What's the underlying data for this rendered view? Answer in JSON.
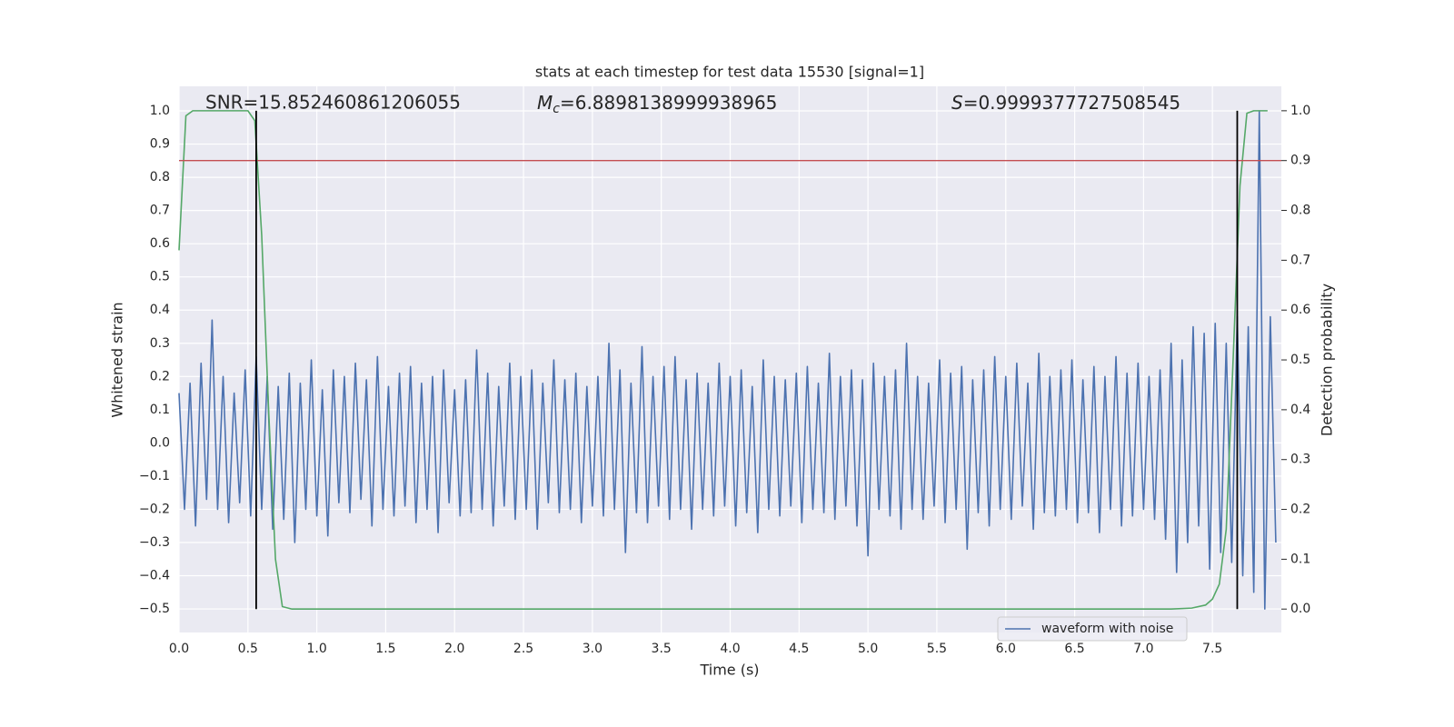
{
  "chart_data": {
    "type": "line",
    "title": "stats at each timestep for test data 15530 [signal=1]",
    "xlabel": "Time (s)",
    "ylabel": "Whitened strain",
    "y2label": "Detection probability",
    "annotations": [
      {
        "text": "SNR=15.852460861206055"
      },
      {
        "base": "M",
        "sub": "c",
        "text": "=6.8898138999938965"
      },
      {
        "base": "S",
        "text": "=0.9999377727508545"
      }
    ],
    "xlim": [
      0,
      8
    ],
    "ylim": [
      -0.571,
      1.074
    ],
    "y2lim": [
      -0.047,
      1.049
    ],
    "xticks": [
      {
        "value": 0,
        "label": "0.0"
      },
      0.5,
      {
        "value": 1,
        "label": "1.0"
      },
      1.5,
      {
        "value": 2,
        "label": "2.0"
      },
      2.5,
      {
        "value": 3,
        "label": "3.0"
      },
      3.5,
      {
        "value": 4,
        "label": "4.0"
      },
      4.5,
      {
        "value": 5,
        "label": "5.0"
      },
      5.5,
      {
        "value": 6,
        "label": "6.0"
      },
      6.5,
      {
        "value": 7,
        "label": "7.0"
      },
      7.5
    ],
    "yticks": [
      {
        "value": -0.5,
        "label": "−0.5"
      },
      {
        "value": -0.4,
        "label": "−0.4"
      },
      {
        "value": -0.3,
        "label": "−0.3"
      },
      {
        "value": -0.2,
        "label": "−0.2"
      },
      {
        "value": -0.1,
        "label": "−0.1"
      },
      {
        "value": 0,
        "label": "0.0"
      },
      0.1,
      0.2,
      0.3,
      0.4,
      0.5,
      0.6,
      0.7,
      0.8,
      0.9,
      {
        "value": 1,
        "label": "1.0"
      }
    ],
    "y2ticks": [
      {
        "value": 0,
        "label": "0.0"
      },
      0.1,
      0.2,
      0.3,
      0.4,
      0.5,
      0.6,
      0.7,
      0.8,
      0.9,
      {
        "value": 1,
        "label": "1.0"
      }
    ],
    "grid": true,
    "legend": "lower right",
    "series": [
      {
        "name": "waveform with noise",
        "color": "#4c72b0",
        "x": [
          0,
          0.04,
          0.08,
          0.12,
          0.16,
          0.2,
          0.24,
          0.28,
          0.32,
          0.36,
          0.4,
          0.44,
          0.48,
          0.52,
          0.56,
          0.6,
          0.64,
          0.68,
          0.72,
          0.76,
          0.8,
          0.84,
          0.88,
          0.92,
          0.96,
          1,
          1.04,
          1.08,
          1.12,
          1.16,
          1.2,
          1.24,
          1.28,
          1.32,
          1.36,
          1.4,
          1.44,
          1.48,
          1.52,
          1.56,
          1.6,
          1.64,
          1.68,
          1.72,
          1.76,
          1.8,
          1.84,
          1.88,
          1.92,
          1.96,
          2,
          2.04,
          2.08,
          2.12,
          2.16,
          2.2,
          2.24,
          2.28,
          2.32,
          2.36,
          2.4,
          2.44,
          2.48,
          2.52,
          2.56,
          2.6,
          2.64,
          2.68,
          2.72,
          2.76,
          2.8,
          2.84,
          2.88,
          2.92,
          2.96,
          3,
          3.04,
          3.08,
          3.12,
          3.16,
          3.2,
          3.24,
          3.28,
          3.32,
          3.36,
          3.4,
          3.44,
          3.48,
          3.52,
          3.56,
          3.6,
          3.64,
          3.68,
          3.72,
          3.76,
          3.8,
          3.84,
          3.88,
          3.92,
          3.96,
          4,
          4.04,
          4.08,
          4.12,
          4.16,
          4.2,
          4.24,
          4.28,
          4.32,
          4.36,
          4.4,
          4.44,
          4.48,
          4.52,
          4.56,
          4.6,
          4.64,
          4.68,
          4.72,
          4.76,
          4.8,
          4.84,
          4.88,
          4.92,
          4.96,
          5,
          5.04,
          5.08,
          5.12,
          5.16,
          5.2,
          5.24,
          5.28,
          5.32,
          5.36,
          5.4,
          5.44,
          5.48,
          5.52,
          5.56,
          5.6,
          5.64,
          5.68,
          5.72,
          5.76,
          5.8,
          5.84,
          5.88,
          5.92,
          5.96,
          6,
          6.04,
          6.08,
          6.12,
          6.16,
          6.2,
          6.24,
          6.28,
          6.32,
          6.36,
          6.4,
          6.44,
          6.48,
          6.52,
          6.56,
          6.6,
          6.64,
          6.68,
          6.72,
          6.76,
          6.8,
          6.84,
          6.88,
          6.92,
          6.96,
          7,
          7.04,
          7.08,
          7.12,
          7.16,
          7.2,
          7.24,
          7.28,
          7.32,
          7.36,
          7.4,
          7.44,
          7.48,
          7.52,
          7.56,
          7.6,
          7.64,
          7.68,
          7.72,
          7.76,
          7.8,
          7.84,
          7.88,
          7.92,
          7.96
        ],
        "values": [
          0.15,
          -0.2,
          0.18,
          -0.25,
          0.24,
          -0.17,
          0.37,
          -0.2,
          0.2,
          -0.24,
          0.15,
          -0.18,
          0.22,
          -0.22,
          0.26,
          -0.2,
          0.2,
          -0.26,
          0.17,
          -0.23,
          0.21,
          -0.3,
          0.18,
          -0.2,
          0.25,
          -0.22,
          0.16,
          -0.28,
          0.22,
          -0.18,
          0.2,
          -0.21,
          0.24,
          -0.17,
          0.19,
          -0.25,
          0.26,
          -0.2,
          0.17,
          -0.22,
          0.21,
          -0.19,
          0.23,
          -0.24,
          0.18,
          -0.2,
          0.2,
          -0.27,
          0.22,
          -0.18,
          0.16,
          -0.22,
          0.19,
          -0.21,
          0.28,
          -0.2,
          0.21,
          -0.25,
          0.17,
          -0.19,
          0.24,
          -0.23,
          0.2,
          -0.2,
          0.22,
          -0.26,
          0.18,
          -0.18,
          0.25,
          -0.21,
          0.19,
          -0.2,
          0.21,
          -0.24,
          0.17,
          -0.19,
          0.2,
          -0.22,
          0.3,
          -0.2,
          0.22,
          -0.33,
          0.18,
          -0.21,
          0.29,
          -0.24,
          0.2,
          -0.19,
          0.23,
          -0.23,
          0.26,
          -0.2,
          0.19,
          -0.26,
          0.21,
          -0.2,
          0.18,
          -0.22,
          0.24,
          -0.19,
          0.2,
          -0.25,
          0.22,
          -0.21,
          0.17,
          -0.27,
          0.25,
          -0.2,
          0.2,
          -0.22,
          0.19,
          -0.19,
          0.21,
          -0.24,
          0.23,
          -0.2,
          0.18,
          -0.21,
          0.27,
          -0.23,
          0.2,
          -0.19,
          0.22,
          -0.25,
          0.19,
          -0.34,
          0.24,
          -0.2,
          0.2,
          -0.22,
          0.22,
          -0.26,
          0.3,
          -0.2,
          0.2,
          -0.23,
          0.18,
          -0.19,
          0.25,
          -0.24,
          0.21,
          -0.2,
          0.23,
          -0.32,
          0.19,
          -0.21,
          0.22,
          -0.25,
          0.26,
          -0.2,
          0.2,
          -0.23,
          0.24,
          -0.19,
          0.18,
          -0.26,
          0.27,
          -0.21,
          0.2,
          -0.22,
          0.22,
          -0.2,
          0.25,
          -0.24,
          0.19,
          -0.21,
          0.23,
          -0.27,
          0.2,
          -0.2,
          0.26,
          -0.25,
          0.21,
          -0.22,
          0.24,
          -0.2,
          0.2,
          -0.23,
          0.22,
          -0.29,
          0.3,
          -0.39,
          0.25,
          -0.3,
          0.35,
          -0.25,
          0.33,
          -0.38,
          0.36,
          -0.33,
          0.3,
          -0.36,
          0.38,
          -0.4,
          0.35,
          -0.45,
          1.0,
          -0.5,
          0.38,
          -0.3
        ]
      },
      {
        "color": "#55a868",
        "axis": "y2",
        "x": [
          0,
          0.05,
          0.1,
          0.45,
          0.5,
          0.55,
          0.6,
          0.65,
          0.7,
          0.75,
          0.82,
          7.2,
          7.35,
          7.45,
          7.5,
          7.55,
          7.6,
          7.65,
          7.7,
          7.75,
          7.8,
          7.9
        ],
        "values": [
          0.72,
          0.99,
          1.0,
          1.0,
          1.0,
          0.98,
          0.75,
          0.4,
          0.1,
          0.005,
          0,
          0,
          0.002,
          0.008,
          0.02,
          0.05,
          0.16,
          0.5,
          0.85,
          0.995,
          1.0,
          1.0
        ]
      }
    ],
    "hlines": [
      {
        "y": 0.9,
        "axis": "y2",
        "color": "#c44e52"
      }
    ],
    "vlines": [
      {
        "x": 0.56,
        "ymin": 0,
        "ymax": 1,
        "axis": "y2",
        "color": "#000000"
      },
      {
        "x": 7.68,
        "ymin": 0,
        "ymax": 1,
        "axis": "y2",
        "color": "#000000"
      }
    ]
  }
}
